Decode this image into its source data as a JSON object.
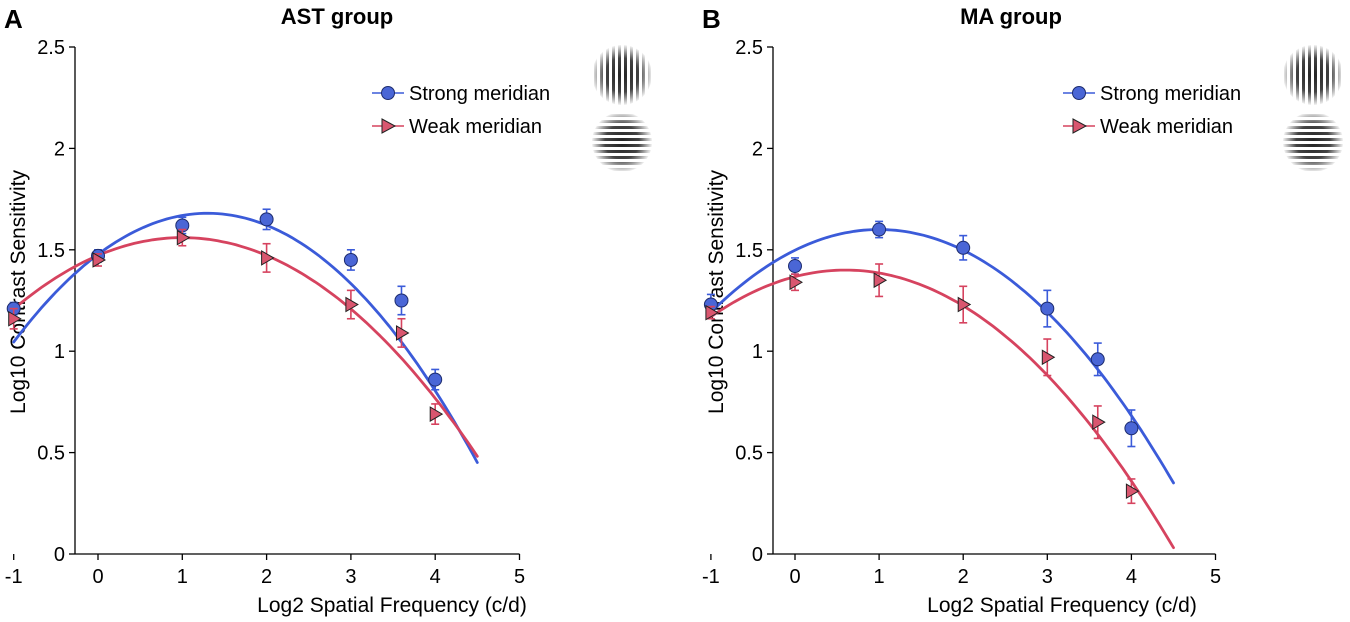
{
  "colors": {
    "strong": "#3b5bd9",
    "strong_marker": "#4a66d6",
    "weak": "#d6435f",
    "weak_marker": "#d9566f",
    "axis": "#000000"
  },
  "chart_data": [
    {
      "type": "line",
      "panel_letter": "A",
      "title": "AST group",
      "xlabel": "Log2 Spatial Frequency (c/d)",
      "ylabel": "Log10 Contrast Sensitivity",
      "xlim": [
        -1.25,
        5
      ],
      "ylim": [
        0,
        2.5
      ],
      "xticks": [
        -1,
        0,
        1,
        2,
        3,
        4,
        5
      ],
      "yticks": [
        0,
        0.5,
        1,
        1.5,
        2,
        2.5
      ],
      "xtick_labels": [
        "-1",
        "0",
        "1",
        "2",
        "3",
        "4",
        "5"
      ],
      "ytick_labels": [
        "0",
        "0.5",
        "1",
        "1.5",
        "2",
        "2.5"
      ],
      "grid": false,
      "legend_position": "top-right",
      "series": [
        {
          "name": "Strong meridian",
          "marker": "circle",
          "x": [
            -1,
            0,
            1,
            2,
            3,
            3.6,
            4
          ],
          "y": [
            1.21,
            1.47,
            1.62,
            1.65,
            1.45,
            1.25,
            0.86
          ],
          "err": [
            0.03,
            0.03,
            0.04,
            0.05,
            0.05,
            0.07,
            0.05
          ],
          "fit": {
            "peak_x": 1.3,
            "peak_y": 1.68,
            "curvature": 0.12,
            "x_range": [
              -1,
              4.5
            ]
          }
        },
        {
          "name": "Weak meridian",
          "marker": "triangle-right",
          "x": [
            -1,
            0,
            1,
            2,
            3,
            3.6,
            4
          ],
          "y": [
            1.16,
            1.45,
            1.56,
            1.46,
            1.23,
            1.09,
            0.69
          ],
          "err": [
            0.05,
            0.03,
            0.04,
            0.07,
            0.07,
            0.07,
            0.05
          ],
          "fit": {
            "peak_x": 1.0,
            "peak_y": 1.56,
            "curvature": 0.088,
            "x_range": [
              -1,
              4.5
            ]
          }
        }
      ]
    },
    {
      "type": "line",
      "panel_letter": "B",
      "title": "MA group",
      "xlabel": "Log2 Spatial Frequency (c/d)",
      "ylabel": "Log10 Contrast Sensitivity",
      "xlim": [
        -1.25,
        5
      ],
      "ylim": [
        0,
        2.5
      ],
      "xticks": [
        -1,
        0,
        1,
        2,
        3,
        4,
        5
      ],
      "yticks": [
        0,
        0.5,
        1,
        1.5,
        2,
        2.5
      ],
      "xtick_labels": [
        "-1",
        "0",
        "1",
        "2",
        "3",
        "4",
        "5"
      ],
      "ytick_labels": [
        "0",
        "0.5",
        "1",
        "1.5",
        "2",
        "2.5"
      ],
      "grid": false,
      "legend_position": "top-right",
      "series": [
        {
          "name": "Strong meridian",
          "marker": "circle",
          "x": [
            -1,
            0,
            1,
            2,
            3,
            3.6,
            4
          ],
          "y": [
            1.23,
            1.42,
            1.6,
            1.51,
            1.21,
            0.96,
            0.62
          ],
          "err": [
            0.05,
            0.04,
            0.04,
            0.06,
            0.09,
            0.08,
            0.09
          ],
          "fit": {
            "peak_x": 1.0,
            "peak_y": 1.6,
            "curvature": 0.102,
            "x_range": [
              -1,
              4.5
            ]
          }
        },
        {
          "name": "Weak meridian",
          "marker": "triangle-right",
          "x": [
            -1,
            0,
            1,
            2,
            3,
            3.6,
            4
          ],
          "y": [
            1.19,
            1.34,
            1.35,
            1.23,
            0.97,
            0.65,
            0.31
          ],
          "err": [
            0.03,
            0.04,
            0.08,
            0.09,
            0.09,
            0.08,
            0.06
          ],
          "fit": {
            "peak_x": 0.6,
            "peak_y": 1.4,
            "curvature": 0.09,
            "x_range": [
              -1,
              4.5
            ]
          }
        }
      ]
    }
  ]
}
